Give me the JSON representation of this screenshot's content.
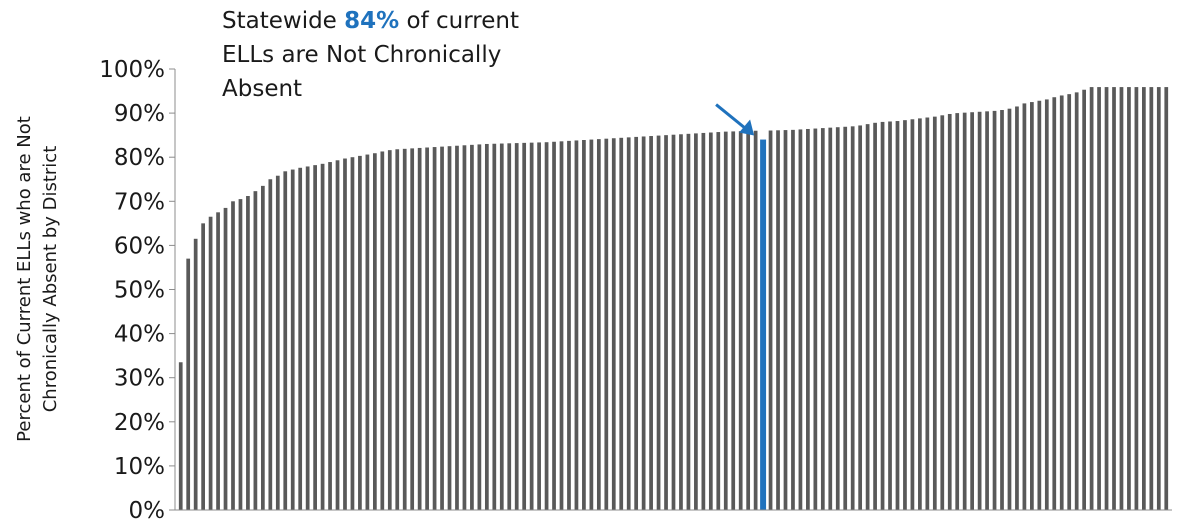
{
  "annotation": {
    "prefix": "Statewide ",
    "highlight": "84%",
    "suffix": " of current ELLs are Not Chronically Absent",
    "colors": {
      "text": "#1a1a1a",
      "highlight": "#1f72bd"
    }
  },
  "chart_data": {
    "type": "bar",
    "title": "",
    "xlabel": "",
    "ylabel_lines": [
      "Percent of Current ELLs who are Not",
      "Chronically Absent by District"
    ],
    "ylim": [
      0,
      100
    ],
    "y_ticks": [
      "0%",
      "10%",
      "20%",
      "30%",
      "40%",
      "50%",
      "60%",
      "70%",
      "80%",
      "90%",
      "100%"
    ],
    "grid": false,
    "legend": "none",
    "bar_color": "#595959",
    "highlight_color": "#1f72bd",
    "highlight_index": 78,
    "highlight_value": 84,
    "values": [
      33.5,
      57,
      61.5,
      65,
      66.5,
      67.5,
      68.5,
      70,
      70.5,
      71.2,
      72.3,
      73.5,
      75,
      75.8,
      76.8,
      77.2,
      77.6,
      77.9,
      78.2,
      78.5,
      78.9,
      79.3,
      79.7,
      80,
      80.3,
      80.6,
      80.9,
      81.3,
      81.6,
      81.8,
      81.9,
      82,
      82.1,
      82.2,
      82.3,
      82.4,
      82.5,
      82.6,
      82.7,
      82.8,
      82.9,
      83,
      83.05,
      83.1,
      83.15,
      83.2,
      83.25,
      83.3,
      83.35,
      83.4,
      83.5,
      83.6,
      83.7,
      83.8,
      83.9,
      84,
      84.1,
      84.2,
      84.3,
      84.4,
      84.5,
      84.6,
      84.7,
      84.8,
      84.9,
      85,
      85.1,
      85.2,
      85.3,
      85.4,
      85.5,
      85.6,
      85.7,
      85.8,
      85.85,
      85.9,
      85.95,
      86,
      84,
      86.05,
      86.1,
      86.15,
      86.2,
      86.3,
      86.4,
      86.5,
      86.6,
      86.7,
      86.8,
      86.9,
      87,
      87.2,
      87.5,
      87.8,
      88,
      88.1,
      88.2,
      88.4,
      88.6,
      88.8,
      89,
      89.2,
      89.5,
      89.8,
      90,
      90.1,
      90.2,
      90.3,
      90.4,
      90.5,
      90.7,
      91,
      91.5,
      92.2,
      92.5,
      92.8,
      93.1,
      93.6,
      94,
      94.3,
      94.7,
      95.3,
      95.9,
      95.9,
      95.9,
      95.9,
      95.9,
      95.9,
      95.9,
      95.9,
      95.9,
      95.9,
      95.9
    ]
  }
}
